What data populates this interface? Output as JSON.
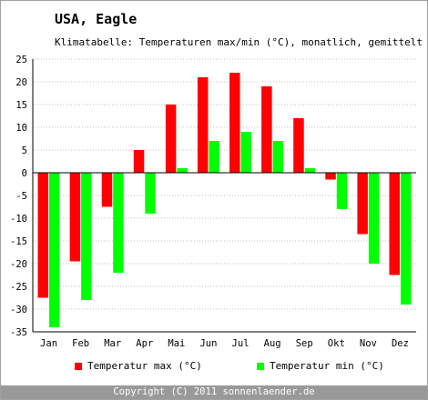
{
  "header": {
    "title": "USA, Eagle",
    "subtitle": "Klimatabelle: Temperaturen max/min (°C), monatlich, gemittelt"
  },
  "footer": {
    "copyright": "Copyright (C) 2011 sonnenlaender.de"
  },
  "chart_data": {
    "type": "bar",
    "categories": [
      "Jan",
      "Feb",
      "Mar",
      "Apr",
      "Mai",
      "Jun",
      "Jul",
      "Aug",
      "Sep",
      "Okt",
      "Nov",
      "Dez"
    ],
    "series": [
      {
        "name": "Temperatur max (°C)",
        "color": "#ff0000",
        "values": [
          -27.5,
          -19.5,
          -7.5,
          5,
          15,
          21,
          22,
          19,
          12,
          -1.5,
          -13.5,
          -22.5
        ]
      },
      {
        "name": "Temperatur min (°C)",
        "color": "#00ff00",
        "values": [
          -34,
          -28,
          -22,
          -9,
          1,
          7,
          9,
          7,
          1,
          -8,
          -20,
          -29
        ]
      }
    ],
    "ylim": [
      -35,
      25
    ],
    "yticks": [
      25,
      20,
      15,
      10,
      5,
      0,
      -5,
      -10,
      -15,
      -20,
      -25,
      -30,
      -35
    ],
    "grid": true,
    "legend_position": "bottom"
  }
}
